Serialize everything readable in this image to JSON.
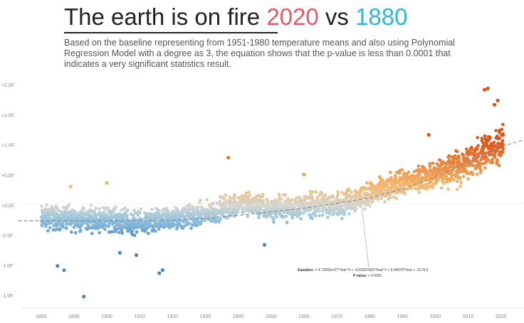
{
  "header": {
    "title_main": "The earth is on fire",
    "title_year_a": "2020",
    "title_vs": "vs",
    "title_year_b": "1880",
    "subtitle": "Based on the baseline representing from 1951-1980 temperature means and also using Polynomial Regression Model with a degree as 3, the equation shows that the p-value is less than 0.0001 that indicates a very significant statistics result."
  },
  "annotation": {
    "equation_label": "Equation:",
    "equation_value": "= 4.72955e-07*Year^3 + -0.00267663*Year^2 + 5.04978*Year + -3176.2",
    "pvalue_label": "P-value:",
    "pvalue_value": "< 0.0001"
  },
  "colors": {
    "cold": "#4a86b8",
    "cool": "#8fc1e0",
    "neutral": "#d6d6d0",
    "warm": "#f5b66a",
    "hot": "#d95216",
    "trend": "#888888"
  },
  "chart_data": {
    "type": "scatter",
    "title": "",
    "xlabel": "",
    "ylabel": "",
    "x_ticks": [
      1880,
      1890,
      1900,
      1910,
      1920,
      1930,
      1940,
      1950,
      1960,
      1970,
      1980,
      1990,
      2000,
      2010,
      2020
    ],
    "y_ticks": [
      "+2.0F",
      "+1.5F",
      "+1.0F",
      "+0.5F",
      "+0.0F",
      "-0.5F",
      "-1.0F",
      "-1.5F"
    ],
    "xlim": [
      1874,
      2027
    ],
    "ylim": [
      -1.7,
      2.12
    ],
    "grid": false,
    "trend": {
      "model": "polynomial",
      "degree": 3,
      "points": [
        {
          "x": 1873,
          "y": -0.25
        },
        {
          "x": 1890,
          "y": -0.25
        },
        {
          "x": 1900,
          "y": -0.25
        },
        {
          "x": 1910,
          "y": -0.25
        },
        {
          "x": 1920,
          "y": -0.24
        },
        {
          "x": 1930,
          "y": -0.21
        },
        {
          "x": 1940,
          "y": -0.16
        },
        {
          "x": 1950,
          "y": -0.1
        },
        {
          "x": 1960,
          "y": -0.04
        },
        {
          "x": 1970,
          "y": 0.04
        },
        {
          "x": 1980,
          "y": 0.13
        },
        {
          "x": 1990,
          "y": 0.28
        },
        {
          "x": 2000,
          "y": 0.48
        },
        {
          "x": 2010,
          "y": 0.72
        },
        {
          "x": 2020,
          "y": 0.98
        },
        {
          "x": 2030,
          "y": 1.15
        }
      ]
    },
    "band_center": [
      {
        "x": 1880,
        "y": -0.2
      },
      {
        "x": 1900,
        "y": -0.22
      },
      {
        "x": 1910,
        "y": -0.3
      },
      {
        "x": 1920,
        "y": -0.22
      },
      {
        "x": 1930,
        "y": -0.14
      },
      {
        "x": 1940,
        "y": 0.05
      },
      {
        "x": 1950,
        "y": -0.05
      },
      {
        "x": 1960,
        "y": 0.0
      },
      {
        "x": 1970,
        "y": 0.02
      },
      {
        "x": 1980,
        "y": 0.2
      },
      {
        "x": 1990,
        "y": 0.38
      },
      {
        "x": 2000,
        "y": 0.52
      },
      {
        "x": 2010,
        "y": 0.72
      },
      {
        "x": 2020,
        "y": 1.05
      }
    ],
    "band_spread": 0.22,
    "outliers": [
      {
        "x": 1893,
        "y": -1.51
      },
      {
        "x": 1885,
        "y": -1.0
      },
      {
        "x": 1887,
        "y": -1.07
      },
      {
        "x": 1917,
        "y": -1.07
      },
      {
        "x": 1916,
        "y": -1.12
      },
      {
        "x": 1889,
        "y": 0.32
      },
      {
        "x": 1900,
        "y": 0.38
      },
      {
        "x": 1937,
        "y": 0.8
      },
      {
        "x": 2016,
        "y": 1.95
      },
      {
        "x": 2015,
        "y": 1.93
      },
      {
        "x": 2019,
        "y": 1.75
      },
      {
        "x": 2018,
        "y": 1.68
      },
      {
        "x": 1960,
        "y": 0.52
      },
      {
        "x": 1998,
        "y": 1.18
      },
      {
        "x": 1948,
        "y": -0.65
      },
      {
        "x": 1909,
        "y": -0.82
      },
      {
        "x": 1904,
        "y": -0.78
      }
    ]
  }
}
